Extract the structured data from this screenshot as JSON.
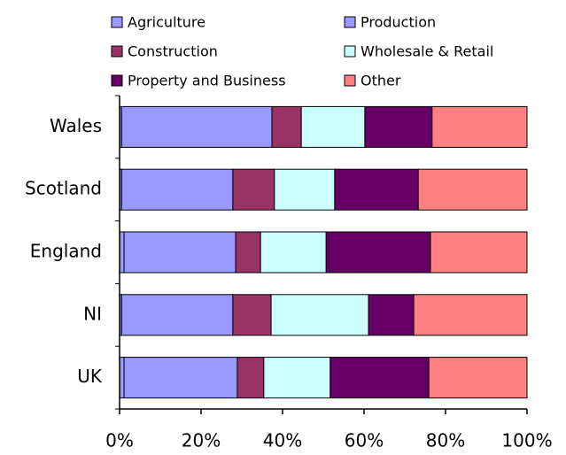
{
  "chart_data": {
    "type": "stacked-barh",
    "categories": [
      "Wales",
      "Scotland",
      "England",
      "NI",
      "UK"
    ],
    "series": [
      {
        "name": "Agriculture",
        "color": "#9999ff",
        "values": [
          0.5,
          0.5,
          1.1,
          0.5,
          1.1
        ]
      },
      {
        "name": "Production",
        "color": "#9999ff",
        "values": [
          36.9,
          27.3,
          27.4,
          27.3,
          27.8
        ]
      },
      {
        "name": "Construction",
        "color": "#993366",
        "values": [
          7.2,
          10.2,
          6.1,
          9.4,
          6.5
        ]
      },
      {
        "name": "Wholesale & Retail",
        "color": "#ccffff",
        "values": [
          15.6,
          14.8,
          16.1,
          23.9,
          16.3
        ]
      },
      {
        "name": "Property and Business",
        "color": "#660066",
        "values": [
          16.5,
          20.5,
          25.6,
          11.1,
          24.2
        ]
      },
      {
        "name": "Other",
        "color": "#ff8080",
        "values": [
          23.3,
          26.7,
          23.7,
          27.8,
          24.1
        ]
      }
    ],
    "xlim": [
      0,
      100
    ],
    "xticks": [
      {
        "value": 0,
        "label": "0%"
      },
      {
        "value": 20,
        "label": "20%"
      },
      {
        "value": 40,
        "label": "40%"
      },
      {
        "value": 60,
        "label": "60%"
      },
      {
        "value": 80,
        "label": "80%"
      },
      {
        "value": 100,
        "label": "100%"
      }
    ],
    "legend": "top"
  }
}
